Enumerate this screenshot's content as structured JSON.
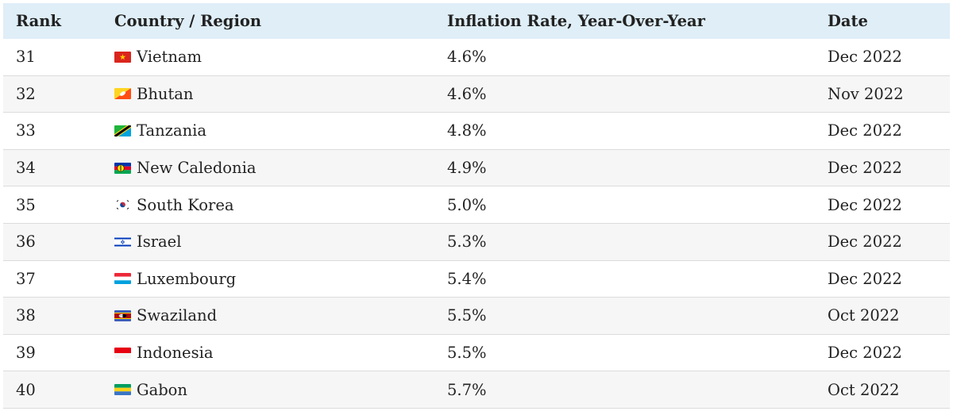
{
  "table": {
    "headers": {
      "rank": "Rank",
      "country": "Country / Region",
      "rate": "Inflation Rate, Year-Over-Year",
      "date": "Date"
    },
    "rows": [
      {
        "rank": "31",
        "country": "Vietnam",
        "rate": "4.6%",
        "date": "Dec 2022",
        "flag": "vietnam-flag-icon"
      },
      {
        "rank": "32",
        "country": "Bhutan",
        "rate": "4.6%",
        "date": "Nov 2022",
        "flag": "bhutan-flag-icon"
      },
      {
        "rank": "33",
        "country": "Tanzania",
        "rate": "4.8%",
        "date": "Dec 2022",
        "flag": "tanzania-flag-icon"
      },
      {
        "rank": "34",
        "country": "New Caledonia",
        "rate": "4.9%",
        "date": "Dec 2022",
        "flag": "new-caledonia-flag-icon"
      },
      {
        "rank": "35",
        "country": "South Korea",
        "rate": "5.0%",
        "date": "Dec 2022",
        "flag": "south-korea-flag-icon"
      },
      {
        "rank": "36",
        "country": "Israel",
        "rate": "5.3%",
        "date": "Dec 2022",
        "flag": "israel-flag-icon"
      },
      {
        "rank": "37",
        "country": "Luxembourg",
        "rate": "5.4%",
        "date": "Dec 2022",
        "flag": "luxembourg-flag-icon"
      },
      {
        "rank": "38",
        "country": "Swaziland",
        "rate": "5.5%",
        "date": "Oct 2022",
        "flag": "swaziland-flag-icon"
      },
      {
        "rank": "39",
        "country": "Indonesia",
        "rate": "5.5%",
        "date": "Dec 2022",
        "flag": "indonesia-flag-icon"
      },
      {
        "rank": "40",
        "country": "Gabon",
        "rate": "5.7%",
        "date": "Oct 2022",
        "flag": "gabon-flag-icon"
      }
    ]
  },
  "colors": {
    "header_bg": "#dfeef7",
    "stripe_bg": "#f6f6f6",
    "divider": "#dcdcdc"
  }
}
